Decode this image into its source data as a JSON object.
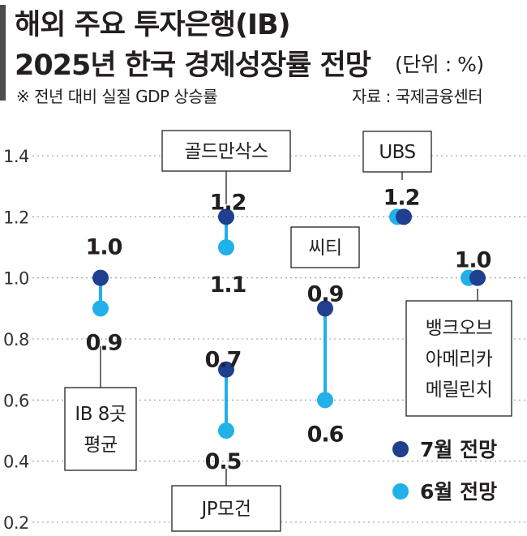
{
  "header": {
    "title_line1": "해외 주요 투자은행(IB)",
    "title_line2": "2025년 한국 경제성장률 전망",
    "unit": "(단위 : %)",
    "note": "※ 전년 대비 실질 GDP 상승률",
    "source": "자료 : 국제금융센터"
  },
  "chart_data": {
    "type": "scatter",
    "title": "해외 주요 투자은행(IB) 2025년 한국 경제성장률 전망",
    "unit": "%",
    "y_ticks": [
      "1.4",
      "1.2",
      "1.0",
      "0.8",
      "0.6",
      "0.4",
      "0.2"
    ],
    "ylim": [
      0.2,
      1.4
    ],
    "categories": [
      {
        "id": "ib8",
        "label_lines": [
          "IB 8곳",
          "평균"
        ],
        "july": 1.0,
        "june": 0.9,
        "july_label": "1.0",
        "june_label": "0.9"
      },
      {
        "id": "jpm",
        "label_lines": [
          "JP모건"
        ],
        "july": 0.7,
        "june": 0.5,
        "july_label": "0.7",
        "june_label": "0.5"
      },
      {
        "id": "gs",
        "label_lines": [
          "골드만삭스"
        ],
        "july": 1.2,
        "june": 1.1,
        "july_label": "1.2",
        "june_label": "1.1"
      },
      {
        "id": "citi",
        "label_lines": [
          "씨티"
        ],
        "july": 0.9,
        "june": 0.6,
        "july_label": "0.9",
        "june_label": "0.6"
      },
      {
        "id": "ubs",
        "label_lines": [
          "UBS"
        ],
        "july": 1.2,
        "june": 1.2,
        "july_label": "1.2"
      },
      {
        "id": "bofa",
        "label_lines": [
          "뱅크오브",
          "아메리카",
          "메릴린치"
        ],
        "july": 1.0,
        "june": 1.0,
        "july_label": "1.0"
      }
    ],
    "series": [
      {
        "name": "7월 전망",
        "key": "july",
        "color": "#1f3f8f"
      },
      {
        "name": "6월 전망",
        "key": "june",
        "color": "#21b0e8"
      }
    ],
    "line_color": "#21b0e8",
    "grid": "dotted horizontal",
    "legend": "bottom-right"
  }
}
